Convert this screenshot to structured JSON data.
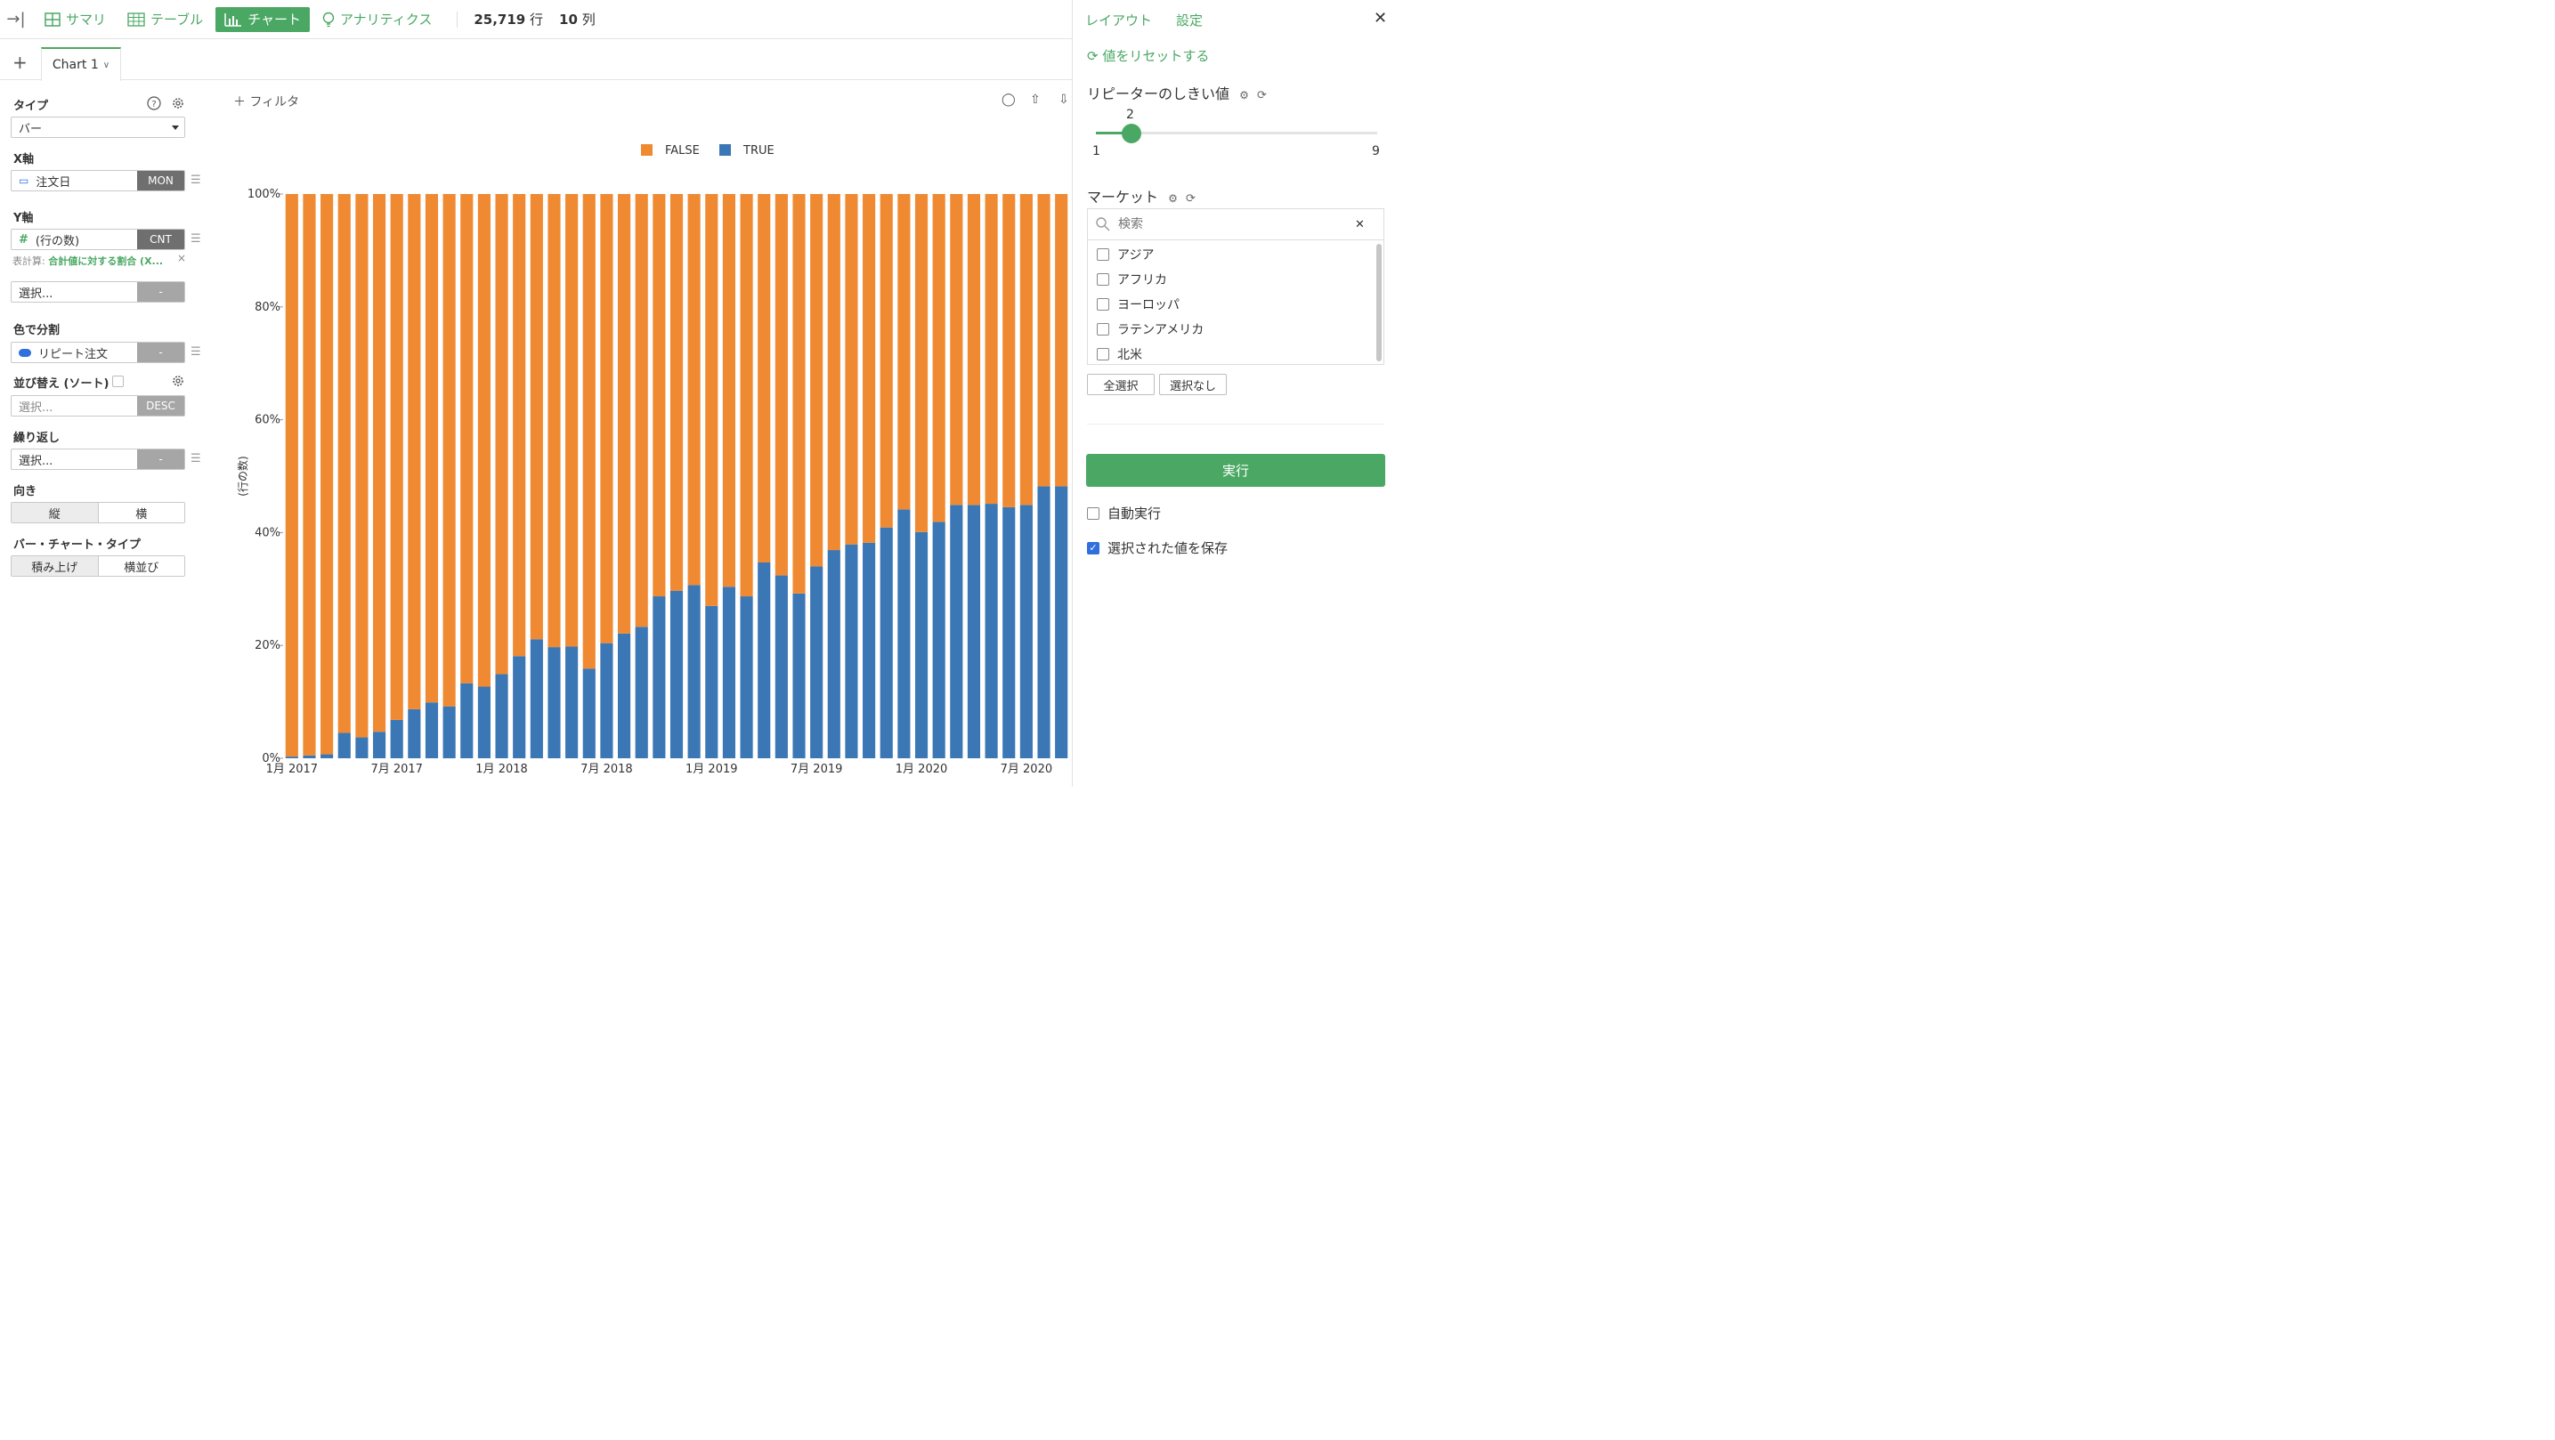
{
  "toolbar": {
    "tabs": [
      {
        "label": "サマリ",
        "icon": "grid-icon"
      },
      {
        "label": "テーブル",
        "icon": "table-icon"
      },
      {
        "label": "チャート",
        "icon": "bar-chart-icon",
        "active": true
      },
      {
        "label": "アナリティクス",
        "icon": "lightbulb-icon"
      }
    ],
    "rows_count": "25,719",
    "rows_unit": "行",
    "cols_count": "10",
    "cols_unit": "列"
  },
  "sheet": {
    "add": "+",
    "tab_label": "Chart 1"
  },
  "config": {
    "type_label": "タイプ",
    "type_value": "バー",
    "x_label": "X軸",
    "x_field": "注文日",
    "x_agg": "MON",
    "y_label": "Y軸",
    "y_field": "(行の数)",
    "y_agg": "CNT",
    "table_calc_prefix": "表計算:",
    "table_calc": "合計値に対する割合 (X...",
    "y2_placeholder": "選択...",
    "y2_agg": "-",
    "color_label": "色で分割",
    "color_field": "リピート注文",
    "color_agg": "-",
    "sort_label": "並び替え (ソート)",
    "sort_placeholder": "選択...",
    "sort_agg": "DESC",
    "repeat_label": "繰り返し",
    "repeat_placeholder": "選択...",
    "repeat_agg": "-",
    "orientation_label": "向き",
    "orientation_options": [
      "縦",
      "横"
    ],
    "bar_type_label": "バー・チャート・タイプ",
    "bar_type_options": [
      "積み上げ",
      "横並び"
    ]
  },
  "filter": {
    "label": "フィルタ"
  },
  "right_panel": {
    "tab_layout": "レイアウト",
    "tab_settings": "設定",
    "reset_label": "値をリセットする",
    "repeater_title": "リピーターのしきい値",
    "slider_value": "2",
    "slider_min": "1",
    "slider_max": "9",
    "slider_fraction": 0.125,
    "market_title": "マーケット",
    "search_placeholder": "検索",
    "markets": [
      "アジア",
      "アフリカ",
      "ヨーロッパ",
      "ラテンアメリカ",
      "北米"
    ],
    "select_all": "全選択",
    "select_none": "選択なし",
    "run_label": "実行",
    "auto_run_label": "自動実行",
    "save_values_label": "選択された値を保存"
  },
  "chart_data": {
    "type": "bar",
    "stacked": true,
    "ylabel": "(行の数)",
    "ylim": [
      0,
      100
    ],
    "yticks": [
      "0%",
      "20%",
      "40%",
      "60%",
      "80%",
      "100%"
    ],
    "xtick_labels": [
      "1月 2017",
      "7月 2017",
      "1月 2018",
      "7月 2018",
      "1月 2019",
      "7月 2019",
      "1月 2020",
      "7月 2020"
    ],
    "legend_position": "top",
    "colors": {
      "FALSE": "#f08a32",
      "TRUE": "#3c77b5"
    },
    "categories": [
      "2017-01",
      "2017-02",
      "2017-03",
      "2017-04",
      "2017-05",
      "2017-06",
      "2017-07",
      "2017-08",
      "2017-09",
      "2017-10",
      "2017-11",
      "2017-12",
      "2018-01",
      "2018-02",
      "2018-03",
      "2018-04",
      "2018-05",
      "2018-06",
      "2018-07",
      "2018-08",
      "2018-09",
      "2018-10",
      "2018-11",
      "2018-12",
      "2019-01",
      "2019-02",
      "2019-03",
      "2019-04",
      "2019-05",
      "2019-06",
      "2019-07",
      "2019-08",
      "2019-09",
      "2019-10",
      "2019-11",
      "2019-12",
      "2020-01",
      "2020-02",
      "2020-03",
      "2020-04",
      "2020-05",
      "2020-06",
      "2020-07",
      "2020-08",
      "2020-09"
    ],
    "series": [
      {
        "name": "TRUE",
        "values": [
          0.3,
          0.5,
          0.7,
          4.5,
          3.7,
          4.7,
          6.8,
          8.7,
          9.9,
          9.2,
          13.3,
          12.7,
          14.9,
          18.1,
          21.1,
          19.7,
          19.8,
          15.9,
          20.4,
          22.1,
          23.3,
          28.7,
          29.7,
          30.7,
          27.0,
          30.4,
          28.7,
          34.7,
          32.4,
          29.2,
          34.0,
          36.9,
          37.9,
          38.2,
          40.9,
          44.1,
          40.1,
          41.9,
          44.9,
          44.9,
          45.1,
          44.5,
          44.9,
          48.2,
          48.2
        ]
      },
      {
        "name": "FALSE",
        "values": [
          99.7,
          99.5,
          99.3,
          95.5,
          96.3,
          95.3,
          93.2,
          91.3,
          90.1,
          90.8,
          86.7,
          87.3,
          85.1,
          81.9,
          78.9,
          80.3,
          80.2,
          84.1,
          79.6,
          77.9,
          76.7,
          71.3,
          70.3,
          69.3,
          73.0,
          69.6,
          71.3,
          65.3,
          67.6,
          70.8,
          66.0,
          63.1,
          62.1,
          61.8,
          59.1,
          55.9,
          59.9,
          58.1,
          55.1,
          55.1,
          54.9,
          55.5,
          55.1,
          51.8,
          51.8
        ]
      }
    ]
  }
}
